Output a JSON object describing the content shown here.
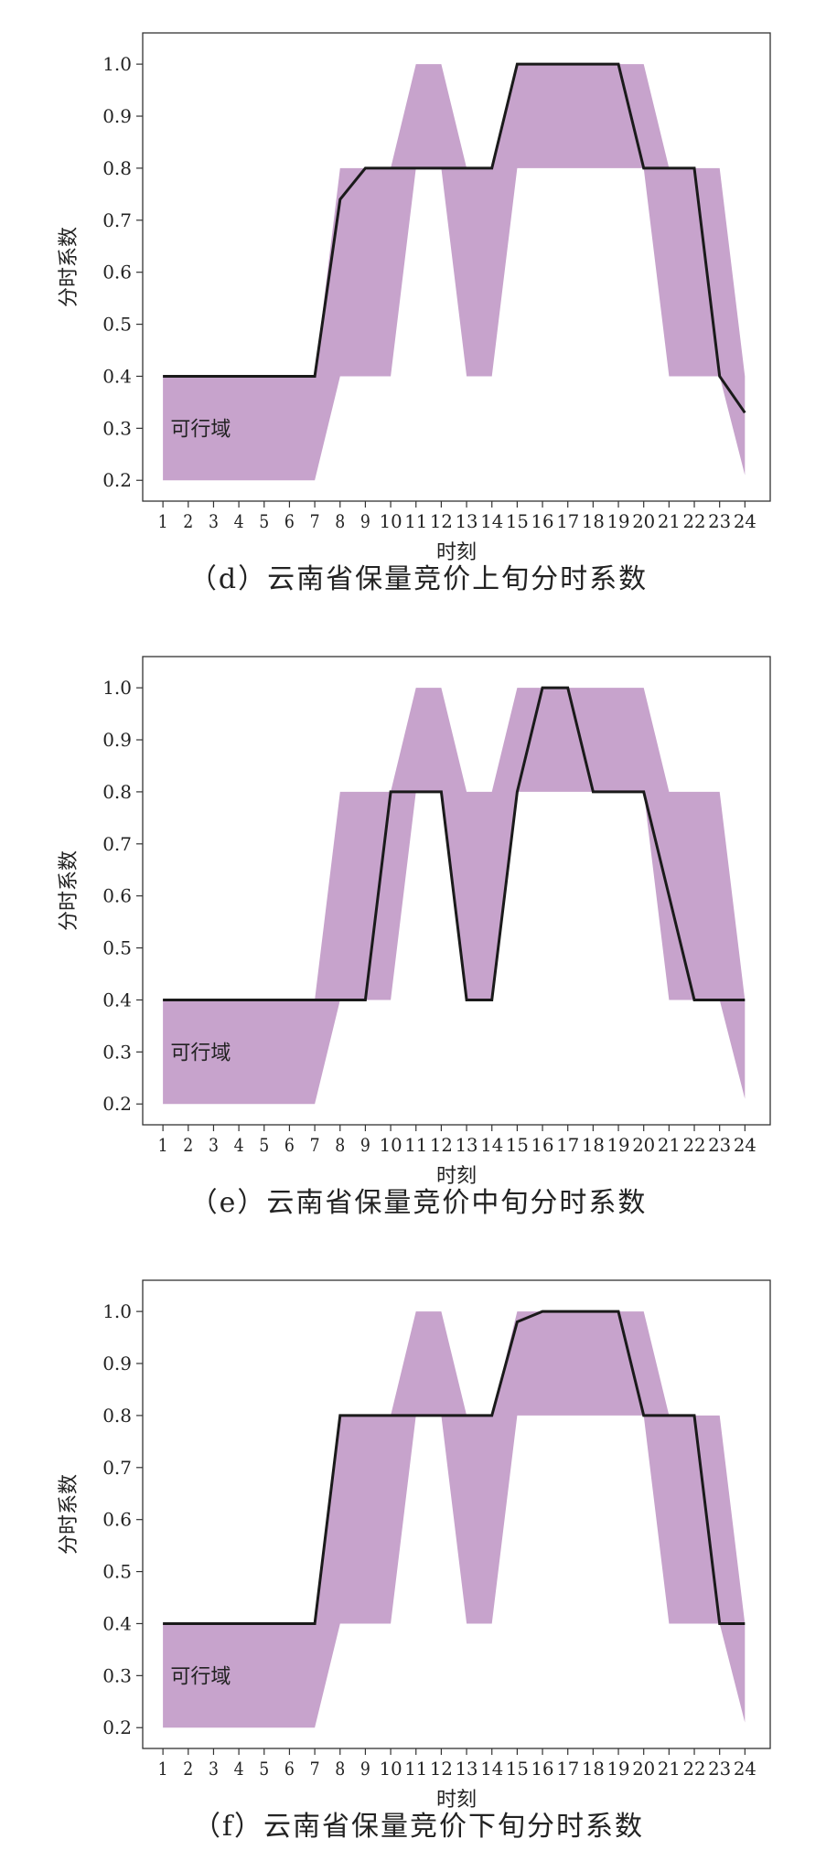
{
  "chart_data": [
    {
      "type": "area",
      "caption": "（d）云南省保量竞价上旬分时系数",
      "xlabel": "时刻",
      "ylabel": "分时系数",
      "region_label": "可行域",
      "x": [
        1,
        2,
        3,
        4,
        5,
        6,
        7,
        8,
        9,
        10,
        11,
        12,
        13,
        14,
        15,
        16,
        17,
        18,
        19,
        20,
        21,
        22,
        23,
        24
      ],
      "xlim": [
        0.2,
        25
      ],
      "ylim": [
        0.16,
        1.06
      ],
      "yticks": [
        0.2,
        0.3,
        0.4,
        0.5,
        0.6,
        0.7,
        0.8,
        0.9,
        1.0
      ],
      "ytick_labels": [
        "0.2",
        "0.3",
        "0.4",
        "0.5",
        "0.6",
        "0.7",
        "0.8",
        "0.9",
        "1.0"
      ],
      "band_lower": [
        0.2,
        0.2,
        0.2,
        0.2,
        0.2,
        0.2,
        0.2,
        0.4,
        0.4,
        0.4,
        0.8,
        0.8,
        0.4,
        0.4,
        0.8,
        0.8,
        0.8,
        0.8,
        0.8,
        0.8,
        0.4,
        0.4,
        0.4,
        0.21
      ],
      "band_upper": [
        0.4,
        0.4,
        0.4,
        0.4,
        0.4,
        0.4,
        0.4,
        0.8,
        0.8,
        0.8,
        1.0,
        1.0,
        0.8,
        0.8,
        1.0,
        1.0,
        1.0,
        1.0,
        1.0,
        1.0,
        0.8,
        0.8,
        0.8,
        0.4
      ],
      "series": [
        {
          "values": [
            0.4,
            0.4,
            0.4,
            0.4,
            0.4,
            0.4,
            0.4,
            0.74,
            0.8,
            0.8,
            0.8,
            0.8,
            0.8,
            0.8,
            1.0,
            1.0,
            1.0,
            1.0,
            1.0,
            0.8,
            0.8,
            0.8,
            0.4,
            0.33
          ]
        }
      ],
      "colors": {
        "band": "#c7a3cc",
        "line": "#1a1a1a"
      },
      "grid": false
    },
    {
      "type": "area",
      "caption": "（e）云南省保量竞价中旬分时系数",
      "xlabel": "时刻",
      "ylabel": "分时系数",
      "region_label": "可行域",
      "x": [
        1,
        2,
        3,
        4,
        5,
        6,
        7,
        8,
        9,
        10,
        11,
        12,
        13,
        14,
        15,
        16,
        17,
        18,
        19,
        20,
        21,
        22,
        23,
        24
      ],
      "xlim": [
        0.2,
        25
      ],
      "ylim": [
        0.16,
        1.06
      ],
      "yticks": [
        0.2,
        0.3,
        0.4,
        0.5,
        0.6,
        0.7,
        0.8,
        0.9,
        1.0
      ],
      "ytick_labels": [
        "0.2",
        "0.3",
        "0.4",
        "0.5",
        "0.6",
        "0.7",
        "0.8",
        "0.9",
        "1.0"
      ],
      "band_lower": [
        0.2,
        0.2,
        0.2,
        0.2,
        0.2,
        0.2,
        0.2,
        0.4,
        0.4,
        0.4,
        0.8,
        0.8,
        0.4,
        0.4,
        0.8,
        0.8,
        0.8,
        0.8,
        0.8,
        0.8,
        0.4,
        0.4,
        0.4,
        0.21
      ],
      "band_upper": [
        0.4,
        0.4,
        0.4,
        0.4,
        0.4,
        0.4,
        0.4,
        0.8,
        0.8,
        0.8,
        1.0,
        1.0,
        0.8,
        0.8,
        1.0,
        1.0,
        1.0,
        1.0,
        1.0,
        1.0,
        0.8,
        0.8,
        0.8,
        0.4
      ],
      "series": [
        {
          "values": [
            0.4,
            0.4,
            0.4,
            0.4,
            0.4,
            0.4,
            0.4,
            0.4,
            0.4,
            0.8,
            0.8,
            0.8,
            0.4,
            0.4,
            0.8,
            1.0,
            1.0,
            0.8,
            0.8,
            0.8,
            0.6,
            0.4,
            0.4,
            0.4
          ]
        }
      ],
      "colors": {
        "band": "#c7a3cc",
        "line": "#1a1a1a"
      },
      "grid": false
    },
    {
      "type": "area",
      "caption": "（f）云南省保量竞价下旬分时系数",
      "xlabel": "时刻",
      "ylabel": "分时系数",
      "region_label": "可行域",
      "x": [
        1,
        2,
        3,
        4,
        5,
        6,
        7,
        8,
        9,
        10,
        11,
        12,
        13,
        14,
        15,
        16,
        17,
        18,
        19,
        20,
        21,
        22,
        23,
        24
      ],
      "xlim": [
        0.2,
        25
      ],
      "ylim": [
        0.16,
        1.06
      ],
      "yticks": [
        0.2,
        0.3,
        0.4,
        0.5,
        0.6,
        0.7,
        0.8,
        0.9,
        1.0
      ],
      "ytick_labels": [
        "0.2",
        "0.3",
        "0.4",
        "0.5",
        "0.6",
        "0.7",
        "0.8",
        "0.9",
        "1.0"
      ],
      "band_lower": [
        0.2,
        0.2,
        0.2,
        0.2,
        0.2,
        0.2,
        0.2,
        0.4,
        0.4,
        0.4,
        0.8,
        0.8,
        0.4,
        0.4,
        0.8,
        0.8,
        0.8,
        0.8,
        0.8,
        0.8,
        0.4,
        0.4,
        0.4,
        0.21
      ],
      "band_upper": [
        0.4,
        0.4,
        0.4,
        0.4,
        0.4,
        0.4,
        0.4,
        0.8,
        0.8,
        0.8,
        1.0,
        1.0,
        0.8,
        0.8,
        1.0,
        1.0,
        1.0,
        1.0,
        1.0,
        1.0,
        0.8,
        0.8,
        0.8,
        0.4
      ],
      "series": [
        {
          "values": [
            0.4,
            0.4,
            0.4,
            0.4,
            0.4,
            0.4,
            0.4,
            0.8,
            0.8,
            0.8,
            0.8,
            0.8,
            0.8,
            0.8,
            0.98,
            1.0,
            1.0,
            1.0,
            1.0,
            0.8,
            0.8,
            0.8,
            0.4,
            0.4
          ]
        }
      ],
      "colors": {
        "band": "#c7a3cc",
        "line": "#1a1a1a"
      },
      "grid": false
    }
  ]
}
